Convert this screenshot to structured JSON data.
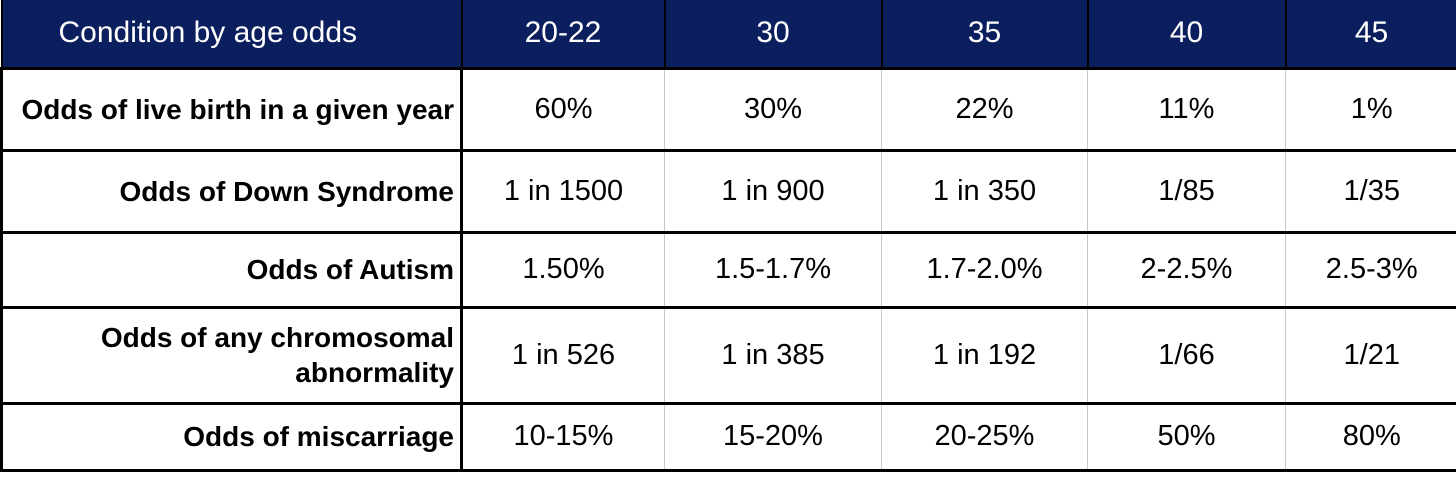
{
  "table": {
    "header": [
      "Condition by age odds",
      "20-22",
      "30",
      "35",
      "40",
      "45"
    ],
    "rows": [
      [
        "Odds of live birth in a given year",
        "60%",
        "30%",
        "22%",
        "11%",
        "1%"
      ],
      [
        "Odds of Down Syndrome",
        "1 in 1500",
        "1 in 900",
        "1 in 350",
        "1/85",
        "1/35"
      ],
      [
        "Odds of Autism",
        "1.50%",
        "1.5-1.7%",
        "1.7-2.0%",
        "2-2.5%",
        "2.5-3%"
      ],
      [
        "Odds of any chromosomal abnormality",
        "1 in 526",
        "1 in 385",
        "1 in 192",
        "1/66",
        "1/21"
      ],
      [
        "Odds of miscarriage",
        "10-15%",
        "15-20%",
        "20-25%",
        "50%",
        "80%"
      ]
    ]
  }
}
